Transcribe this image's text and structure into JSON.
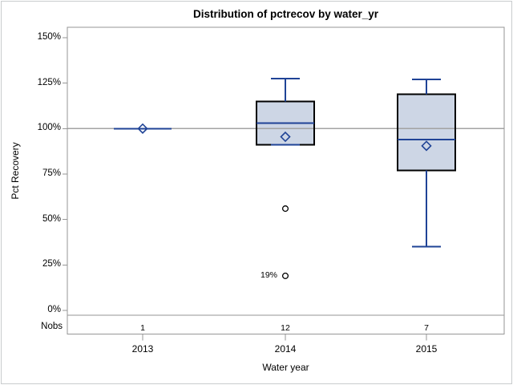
{
  "chart_data": {
    "type": "boxplot",
    "title": "Distribution of pctrecov by water_yr",
    "xlabel": "Water year",
    "ylabel": "Pct Recovery",
    "categories": [
      "2013",
      "2014",
      "2015"
    ],
    "nobs_label": "Nobs",
    "nobs": [
      "1",
      "12",
      "7"
    ],
    "y_ticks": [
      {
        "value": 150,
        "label": "150%"
      },
      {
        "value": 125,
        "label": "125%"
      },
      {
        "value": 100,
        "label": "100%"
      },
      {
        "value": 75,
        "label": "75%"
      },
      {
        "value": 50,
        "label": "50%"
      },
      {
        "value": 25,
        "label": "25%"
      },
      {
        "value": 0,
        "label": "0%"
      }
    ],
    "ylim": [
      0,
      155
    ],
    "reference_line": 100,
    "grid": "off",
    "series": [
      {
        "category": "2013",
        "nobs": 1,
        "min": 100,
        "q1": 100,
        "median": 100,
        "q3": 100,
        "max": 100,
        "mean": 100,
        "outliers": []
      },
      {
        "category": "2014",
        "nobs": 12,
        "min": 91,
        "q1": 91,
        "median": 103,
        "q3": 115,
        "max": 127.5,
        "mean": 95.5,
        "outliers": [
          {
            "value": 56,
            "label": ""
          },
          {
            "value": 19,
            "label": "19%"
          }
        ]
      },
      {
        "category": "2015",
        "nobs": 7,
        "min": 35,
        "q1": 77,
        "median": 94,
        "q3": 119,
        "max": 127,
        "mean": 90.5,
        "outliers": []
      }
    ],
    "colors": {
      "box_fill": "#cdd6e5",
      "box_border": "#000000",
      "box_line": "#1f4396",
      "axis_line": "#969696",
      "reference_line": "#a3a3a3",
      "text": "#000000",
      "outlier_stroke": "#000000",
      "background": "#ffffff"
    }
  }
}
